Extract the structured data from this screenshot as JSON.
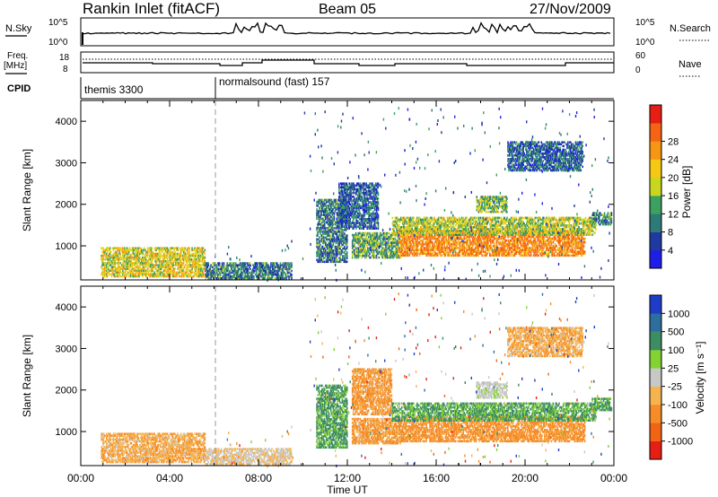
{
  "header": {
    "station": "Rankin Inlet (fitACF)",
    "beam": "Beam 05",
    "date": "27/Nov/2009"
  },
  "top_labels": {
    "nsky": "N.Sky",
    "nsearch": "N.Search",
    "freq_line1": "Freq.",
    "freq_line2": "[MHz]",
    "nave": "Nave",
    "cpid": "CPID",
    "noise_tick_hi": "10^5",
    "noise_tick_lo": "10^0",
    "freq_tick_hi": "18",
    "freq_tick_lo": "8",
    "nave_tick_hi": "60",
    "nave_tick_lo": "0"
  },
  "cpid_segments": [
    {
      "label": "themis 3300",
      "start_hour": 0
    },
    {
      "label": "normalsound (fast) 157",
      "start_hour": 6
    }
  ],
  "chart_data": [
    {
      "type": "heatmap",
      "panel": "power",
      "ylabel": "Slant Range [km]",
      "xlabel": "",
      "xlim": [
        0,
        24
      ],
      "ylim": [
        180,
        4500
      ],
      "yticks": [
        "1000",
        "2000",
        "3000",
        "4000"
      ],
      "colorbar": {
        "label": "Power [dB]",
        "ticks": [
          "4",
          "8",
          "12",
          "16",
          "20",
          "24",
          "28"
        ],
        "colors": [
          "#1e1ee6",
          "#1e3aa0",
          "#2e7a78",
          "#3ca060",
          "#c8d61e",
          "#f5c814",
          "#f59614",
          "#f56414",
          "#e61e14"
        ]
      },
      "regions": [
        {
          "t0": 0.9,
          "t1": 5.6,
          "r0": 250,
          "r1": 950,
          "level": 20
        },
        {
          "t0": 5.6,
          "t1": 9.5,
          "r0": 200,
          "r1": 600,
          "level": 10
        },
        {
          "t0": 10.6,
          "t1": 12.0,
          "r0": 600,
          "r1": 2100,
          "level": 10
        },
        {
          "t0": 11.6,
          "t1": 13.4,
          "r0": 1400,
          "r1": 2500,
          "level": 8
        },
        {
          "t0": 12.2,
          "t1": 14.4,
          "r0": 700,
          "r1": 1300,
          "level": 14
        },
        {
          "t0": 14.3,
          "t1": 22.7,
          "r0": 750,
          "r1": 1350,
          "level": 28
        },
        {
          "t0": 14.0,
          "t1": 23.2,
          "r0": 1250,
          "r1": 1700,
          "level": 18
        },
        {
          "t0": 17.8,
          "t1": 19.2,
          "r0": 1800,
          "r1": 2200,
          "level": 16
        },
        {
          "t0": 19.2,
          "t1": 22.6,
          "r0": 2800,
          "r1": 3500,
          "level": 8
        },
        {
          "t0": 23.0,
          "t1": 23.9,
          "r0": 1500,
          "r1": 1800,
          "level": 12
        }
      ]
    },
    {
      "type": "heatmap",
      "panel": "velocity",
      "ylabel": "Slant Range [km]",
      "xlabel": "Time UT",
      "xlim": [
        0,
        24
      ],
      "ylim": [
        180,
        4500
      ],
      "xticks": [
        "00:00",
        "04:00",
        "08:00",
        "12:00",
        "16:00",
        "20:00",
        "00:00"
      ],
      "yticks": [
        "1000",
        "2000",
        "3000",
        "4000"
      ],
      "colorbar": {
        "label": "Velocity [m s⁻¹]",
        "ticks": [
          "1000",
          "500",
          "100",
          "25",
          "-25",
          "-100",
          "-500",
          "-1000"
        ],
        "colors": [
          "#1e3cc8",
          "#2e6e9e",
          "#3c8c64",
          "#82d232",
          "#c8c8c8",
          "#f5b450",
          "#f58c28",
          "#f06414",
          "#e61e14"
        ]
      },
      "regions": [
        {
          "t0": 0.9,
          "t1": 5.6,
          "r0": 250,
          "r1": 950,
          "level": -80
        },
        {
          "t0": 5.6,
          "t1": 9.5,
          "r0": 200,
          "r1": 600,
          "level": -20
        },
        {
          "t0": 10.6,
          "t1": 12.0,
          "r0": 600,
          "r1": 2100,
          "level": 150
        },
        {
          "t0": 12.2,
          "t1": 14.0,
          "r0": 1400,
          "r1": 2500,
          "level": -150
        },
        {
          "t0": 12.2,
          "t1": 14.4,
          "r0": 700,
          "r1": 1300,
          "level": -120
        },
        {
          "t0": 14.3,
          "t1": 22.7,
          "r0": 750,
          "r1": 1350,
          "level": -200
        },
        {
          "t0": 14.0,
          "t1": 23.2,
          "r0": 1250,
          "r1": 1700,
          "level": 120
        },
        {
          "t0": 17.8,
          "t1": 19.2,
          "r0": 1800,
          "r1": 2200,
          "level": 10
        },
        {
          "t0": 19.2,
          "t1": 22.6,
          "r0": 2800,
          "r1": 3500,
          "level": -80
        },
        {
          "t0": 23.0,
          "t1": 23.9,
          "r0": 1500,
          "r1": 1800,
          "level": 150
        }
      ]
    }
  ]
}
